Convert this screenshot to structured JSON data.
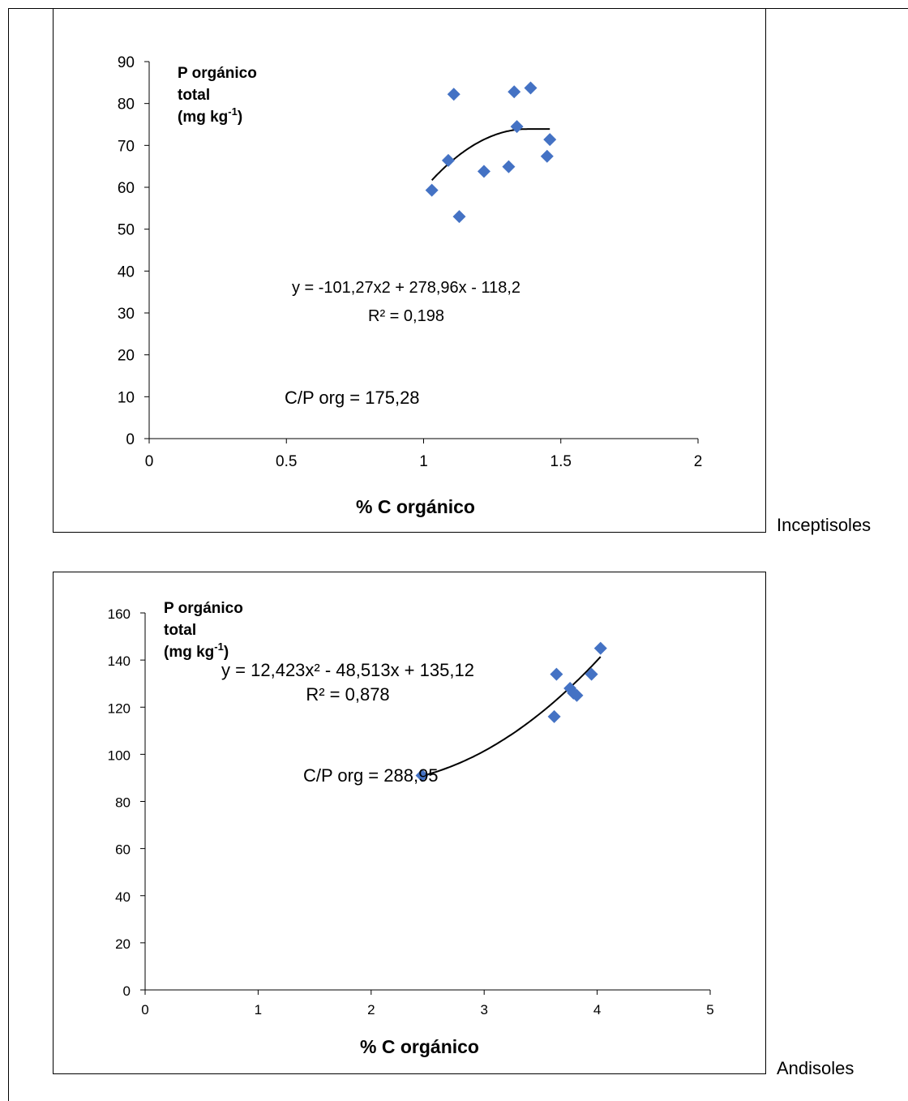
{
  "labels": {
    "panel1_side": "Inceptisoles",
    "panel2_side": "Andisoles"
  },
  "chart_data": [
    {
      "type": "scatter",
      "xlabel": "% C orgánico",
      "ylabel_lines": [
        "P orgánico",
        "total",
        "(mg kg",
        "-1",
        ")"
      ],
      "xlim": [
        0,
        2
      ],
      "ylim": [
        0,
        90
      ],
      "x_ticks": [
        0,
        0.5,
        1,
        1.5,
        2
      ],
      "x_tick_labels": [
        "0",
        "0.5",
        "1",
        "1.5",
        "2"
      ],
      "y_ticks": [
        0,
        10,
        20,
        30,
        40,
        50,
        60,
        70,
        80,
        90
      ],
      "y_tick_labels": [
        "0",
        "10",
        "20",
        "30",
        "40",
        "50",
        "60",
        "70",
        "80",
        "90"
      ],
      "marker_color": "#4472C4",
      "points": [
        {
          "x": 1.03,
          "y": 59.3
        },
        {
          "x": 1.09,
          "y": 66.4
        },
        {
          "x": 1.11,
          "y": 82.2
        },
        {
          "x": 1.13,
          "y": 53.0
        },
        {
          "x": 1.22,
          "y": 63.8
        },
        {
          "x": 1.31,
          "y": 64.9
        },
        {
          "x": 1.33,
          "y": 82.8
        },
        {
          "x": 1.34,
          "y": 74.5
        },
        {
          "x": 1.39,
          "y": 83.7
        },
        {
          "x": 1.45,
          "y": 67.4
        },
        {
          "x": 1.46,
          "y": 71.4
        }
      ],
      "trendline": {
        "a": -101.27,
        "b": 278.96,
        "c": -118.2,
        "x_range": [
          1.03,
          1.46
        ],
        "peak_clamp": true
      },
      "equation": "y = -101,27x2 + 278,96x - 118,2",
      "r2": "R² = 0,198",
      "ratio": "C/P org = 175,28"
    },
    {
      "type": "scatter",
      "xlabel": "% C orgánico",
      "ylabel_lines": [
        "P orgánico",
        "total",
        "(mg kg",
        "-1",
        ")"
      ],
      "xlim": [
        0,
        5
      ],
      "ylim": [
        0,
        160
      ],
      "x_ticks": [
        0,
        1,
        2,
        3,
        4,
        5
      ],
      "x_tick_labels": [
        "0",
        "1",
        "2",
        "3",
        "4",
        "5"
      ],
      "y_ticks": [
        0,
        20,
        40,
        60,
        80,
        100,
        120,
        140,
        160
      ],
      "y_tick_labels": [
        "0",
        "20",
        "40",
        "60",
        "80",
        "100",
        "120",
        "140",
        "160"
      ],
      "marker_color": "#4472C4",
      "points": [
        {
          "x": 2.45,
          "y": 91
        },
        {
          "x": 3.62,
          "y": 116
        },
        {
          "x": 3.64,
          "y": 134
        },
        {
          "x": 3.76,
          "y": 128
        },
        {
          "x": 3.79,
          "y": 126
        },
        {
          "x": 3.82,
          "y": 125
        },
        {
          "x": 3.95,
          "y": 134
        },
        {
          "x": 4.03,
          "y": 145
        }
      ],
      "trendline": {
        "a": 12.423,
        "b": -48.513,
        "c": 135.12,
        "x_range": [
          2.45,
          4.03
        ],
        "peak_clamp": false
      },
      "equation": "y = 12,423x² - 48,513x + 135,12",
      "r2": "R² = 0,878",
      "ratio": "C/P org = 288,95"
    }
  ]
}
